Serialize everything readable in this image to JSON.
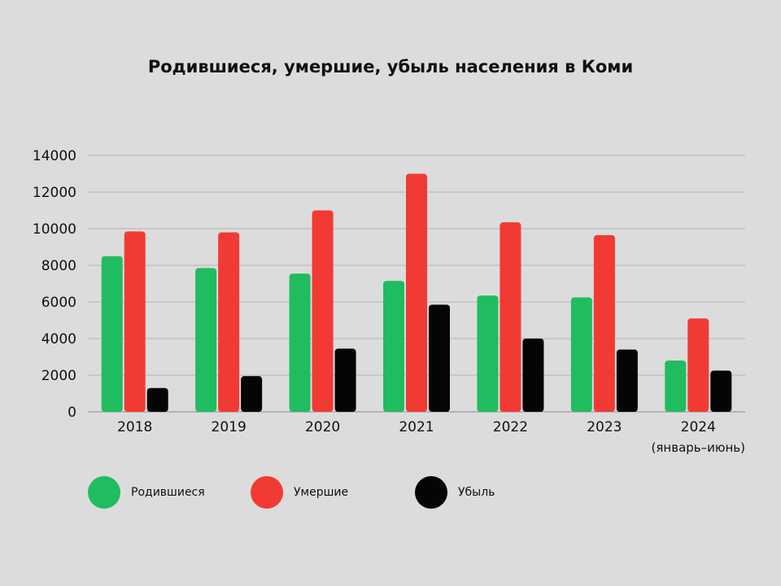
{
  "chart_data": {
    "type": "bar",
    "title": "Родившиеся, умершие, убыль населения в Коми",
    "categories": [
      "2018",
      "2019",
      "2020",
      "2021",
      "2022",
      "2023",
      "2024"
    ],
    "category_notes": [
      "",
      "",
      "",
      "",
      "",
      "",
      "(январь–июнь)"
    ],
    "series": [
      {
        "name": "Родившиеся",
        "color": "#1fbd5f",
        "values": [
          8500,
          7850,
          7550,
          7150,
          6350,
          6250,
          2800
        ]
      },
      {
        "name": "Умершие",
        "color": "#f23a34",
        "values": [
          9850,
          9800,
          11000,
          13000,
          10350,
          9650,
          5100
        ]
      },
      {
        "name": "Убыль",
        "color": "#050505",
        "values": [
          1300,
          1950,
          3450,
          5850,
          4000,
          3400,
          2250
        ]
      }
    ],
    "yticks": [
      "0",
      "2000",
      "4000",
      "6000",
      "8000",
      "10000",
      "12000",
      "14000"
    ],
    "ylim": [
      0,
      14000
    ],
    "grid": true,
    "legend_position": "bottom-left"
  }
}
